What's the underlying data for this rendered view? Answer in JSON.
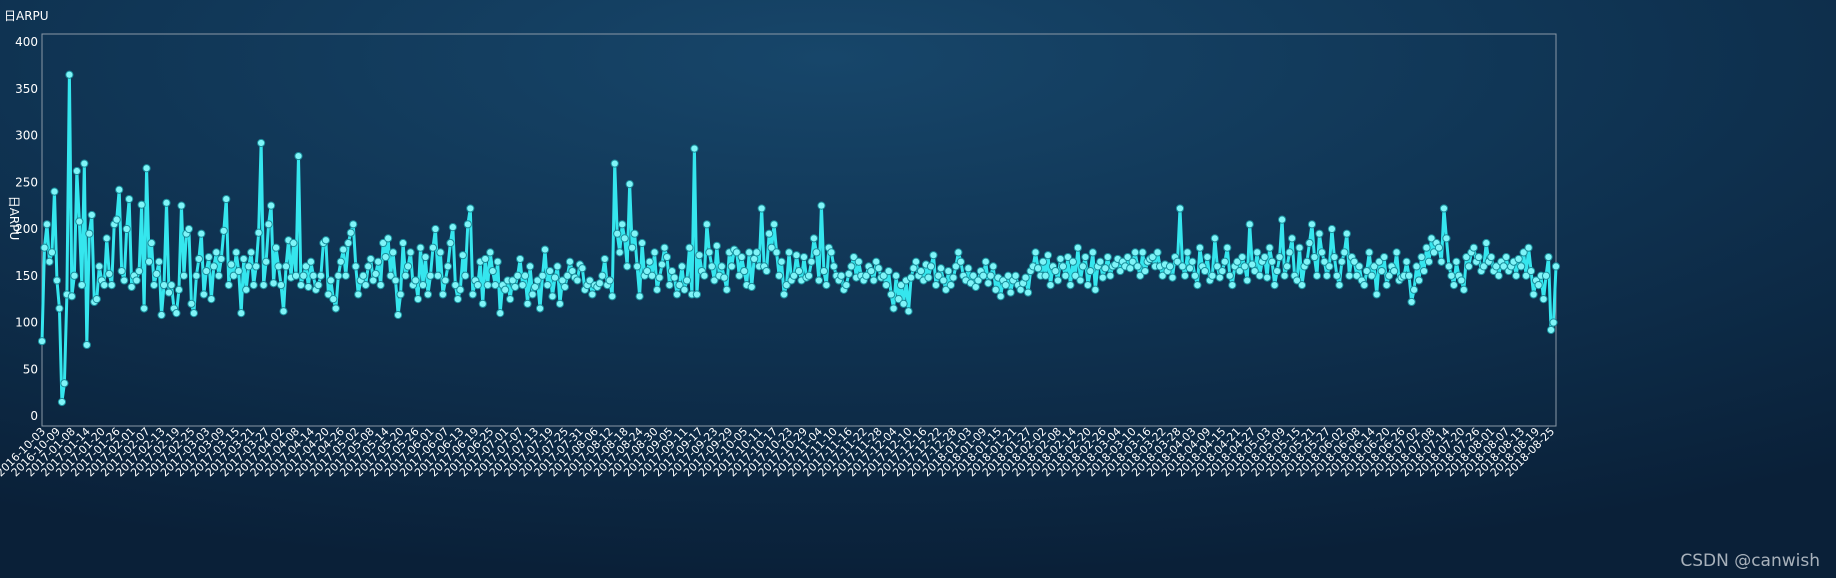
{
  "chart_data": {
    "type": "line",
    "title": "日ARPU",
    "y_label": "日ARPU",
    "watermark": "CSDN @canwish",
    "color": "#35e6ee",
    "ylim": [
      0,
      400
    ],
    "yticks": [
      0,
      50,
      100,
      150,
      200,
      250,
      300,
      350,
      400
    ],
    "grid": false,
    "categories": [
      "2016-10-03",
      null,
      null,
      null,
      null,
      null,
      "2016-10-09",
      null,
      null,
      null,
      null,
      null,
      "2017-01-08",
      null,
      null,
      null,
      null,
      null,
      "2017-01-14",
      null,
      null,
      null,
      null,
      null,
      "2017-01-20",
      null,
      null,
      null,
      null,
      null,
      "2017-01-26",
      null,
      null,
      null,
      null,
      null,
      "2017-02-01",
      null,
      null,
      null,
      null,
      null,
      "2017-02-07",
      null,
      null,
      null,
      null,
      null,
      "2017-02-13",
      null,
      null,
      null,
      null,
      null,
      "2017-02-19",
      null,
      null,
      null,
      null,
      null,
      "2017-02-25",
      null,
      null,
      null,
      null,
      null,
      "2017-03-03",
      null,
      null,
      null,
      null,
      null,
      "2017-03-09",
      null,
      null,
      null,
      null,
      null,
      "2017-03-15",
      null,
      null,
      null,
      null,
      null,
      "2017-03-21",
      null,
      null,
      null,
      null,
      null,
      "2017-03-27",
      null,
      null,
      null,
      null,
      null,
      "2017-04-02",
      null,
      null,
      null,
      null,
      null,
      "2017-04-08",
      null,
      null,
      null,
      null,
      null,
      "2017-04-14",
      null,
      null,
      null,
      null,
      null,
      "2017-04-20",
      null,
      null,
      null,
      null,
      null,
      "2017-04-26",
      null,
      null,
      null,
      null,
      null,
      "2017-05-02",
      null,
      null,
      null,
      null,
      null,
      "2017-05-08",
      null,
      null,
      null,
      null,
      null,
      "2017-05-14",
      null,
      null,
      null,
      null,
      null,
      "2017-05-20",
      null,
      null,
      null,
      null,
      null,
      "2017-05-26",
      null,
      null,
      null,
      null,
      null,
      "2017-06-01",
      null,
      null,
      null,
      null,
      null,
      "2017-06-07",
      null,
      null,
      null,
      null,
      null,
      "2017-06-13",
      null,
      null,
      null,
      null,
      null,
      "2017-06-19",
      null,
      null,
      null,
      null,
      null,
      "2017-06-25",
      null,
      null,
      null,
      null,
      null,
      "2017-07-01",
      null,
      null,
      null,
      null,
      null,
      "2017-07-07",
      null,
      null,
      null,
      null,
      null,
      "2017-07-13",
      null,
      null,
      null,
      null,
      null,
      "2017-07-19",
      null,
      null,
      null,
      null,
      null,
      "2017-07-25",
      null,
      null,
      null,
      null,
      null,
      "2017-07-31",
      null,
      null,
      null,
      null,
      null,
      "2017-08-06",
      null,
      null,
      null,
      null,
      null,
      "2017-08-12",
      null,
      null,
      null,
      null,
      null,
      "2017-08-18",
      null,
      null,
      null,
      null,
      null,
      "2017-08-24",
      null,
      null,
      null,
      null,
      null,
      "2017-08-30",
      null,
      null,
      null,
      null,
      null,
      "2017-09-05",
      null,
      null,
      null,
      null,
      null,
      "2017-09-11",
      null,
      null,
      null,
      null,
      null,
      "2017-09-17",
      null,
      null,
      null,
      null,
      null,
      "2017-09-23",
      null,
      null,
      null,
      null,
      null,
      "2017-09-29",
      null,
      null,
      null,
      null,
      null,
      "2017-10-05",
      null,
      null,
      null,
      null,
      null,
      "2017-10-11",
      null,
      null,
      null,
      null,
      null,
      "2017-10-17",
      null,
      null,
      null,
      null,
      null,
      "2017-10-23",
      null,
      null,
      null,
      null,
      null,
      "2017-10-29",
      null,
      null,
      null,
      null,
      null,
      "2017-11-04",
      null,
      null,
      null,
      null,
      null,
      "2017-11-10",
      null,
      null,
      null,
      null,
      null,
      "2017-11-16",
      null,
      null,
      null,
      null,
      null,
      "2017-11-22",
      null,
      null,
      null,
      null,
      null,
      "2017-11-28",
      null,
      null,
      null,
      null,
      null,
      "2017-12-04",
      null,
      null,
      null,
      null,
      null,
      "2017-12-10",
      null,
      null,
      null,
      null,
      null,
      "2017-12-16",
      null,
      null,
      null,
      null,
      null,
      "2017-12-22",
      null,
      null,
      null,
      null,
      null,
      "2017-12-28",
      null,
      null,
      null,
      null,
      null,
      "2018-01-03",
      null,
      null,
      null,
      null,
      null,
      "2018-01-09",
      null,
      null,
      null,
      null,
      null,
      "2018-01-15",
      null,
      null,
      null,
      null,
      null,
      "2018-01-21",
      null,
      null,
      null,
      null,
      null,
      "2018-01-27",
      null,
      null,
      null,
      null,
      null,
      "2018-02-02",
      null,
      null,
      null,
      null,
      null,
      "2018-02-08",
      null,
      null,
      null,
      null,
      null,
      "2018-02-14",
      null,
      null,
      null,
      null,
      null,
      "2018-02-20",
      null,
      null,
      null,
      null,
      null,
      "2018-02-26",
      null,
      null,
      null,
      null,
      null,
      "2018-03-04",
      null,
      null,
      null,
      null,
      null,
      "2018-03-10",
      null,
      null,
      null,
      null,
      null,
      "2018-03-16",
      null,
      null,
      null,
      null,
      null,
      "2018-03-22",
      null,
      null,
      null,
      null,
      null,
      "2018-03-28",
      null,
      null,
      null,
      null,
      null,
      "2018-04-03",
      null,
      null,
      null,
      null,
      null,
      "2018-04-09",
      null,
      null,
      null,
      null,
      null,
      "2018-04-15",
      null,
      null,
      null,
      null,
      null,
      "2018-04-21",
      null,
      null,
      null,
      null,
      null,
      "2018-04-27",
      null,
      null,
      null,
      null,
      null,
      "2018-05-03",
      null,
      null,
      null,
      null,
      null,
      "2018-05-09",
      null,
      null,
      null,
      null,
      null,
      "2018-05-15",
      null,
      null,
      null,
      null,
      null,
      "2018-05-21",
      null,
      null,
      null,
      null,
      null,
      "2018-05-27",
      null,
      null,
      null,
      null,
      null,
      "2018-06-02",
      null,
      null,
      null,
      null,
      null,
      "2018-06-08",
      null,
      null,
      null,
      null,
      null,
      "2018-06-14",
      null,
      null,
      null,
      null,
      null,
      "2018-06-20",
      null,
      null,
      null,
      null,
      null,
      "2018-06-26",
      null,
      null,
      null,
      null,
      null,
      "2018-07-02",
      null,
      null,
      null,
      null,
      null,
      "2018-07-08",
      null,
      null,
      null,
      null,
      null,
      "2018-07-14",
      null,
      null,
      null,
      null,
      null,
      "2018-07-20",
      null,
      null,
      null,
      null,
      null,
      "2018-07-26",
      null,
      null,
      null,
      null,
      null,
      "2018-08-01",
      null,
      null,
      null,
      null,
      null,
      "2018-08-07",
      null,
      null,
      null,
      null,
      null,
      "2018-08-13",
      null,
      null,
      null,
      null,
      null,
      "2018-08-19",
      null,
      null,
      null,
      null,
      null,
      "2018-08-25",
      null,
      null
    ],
    "values": [
      80,
      180,
      205,
      165,
      175,
      240,
      145,
      115,
      15,
      35,
      130,
      365,
      128,
      150,
      262,
      208,
      140,
      270,
      76,
      195,
      215,
      122,
      125,
      160,
      145,
      140,
      190,
      152,
      140,
      205,
      210,
      242,
      155,
      145,
      200,
      232,
      138,
      150,
      145,
      155,
      226,
      115,
      265,
      165,
      185,
      140,
      152,
      165,
      108,
      140,
      228,
      132,
      140,
      115,
      110,
      135,
      225,
      150,
      195,
      200,
      120,
      110,
      150,
      168,
      195,
      130,
      155,
      170,
      125,
      160,
      175,
      150,
      168,
      198,
      232,
      140,
      162,
      150,
      175,
      155,
      110,
      168,
      135,
      160,
      175,
      140,
      160,
      196,
      292,
      140,
      165,
      205,
      225,
      142,
      180,
      160,
      140,
      112,
      160,
      188,
      148,
      185,
      150,
      278,
      140,
      150,
      160,
      138,
      165,
      150,
      135,
      140,
      150,
      185,
      188,
      130,
      145,
      125,
      115,
      150,
      165,
      178,
      150,
      185,
      196,
      205,
      160,
      130,
      145,
      150,
      140,
      160,
      168,
      145,
      152,
      165,
      140,
      185,
      170,
      190,
      150,
      175,
      145,
      108,
      130,
      185,
      150,
      160,
      175,
      140,
      145,
      125,
      180,
      140,
      170,
      130,
      150,
      180,
      200,
      150,
      175,
      130,
      145,
      160,
      185,
      202,
      140,
      125,
      135,
      172,
      150,
      205,
      222,
      130,
      145,
      140,
      165,
      120,
      168,
      140,
      175,
      155,
      140,
      165,
      110,
      140,
      135,
      145,
      125,
      145,
      138,
      150,
      168,
      140,
      150,
      120,
      160,
      130,
      138,
      145,
      115,
      150,
      178,
      140,
      155,
      128,
      148,
      160,
      120,
      145,
      138,
      150,
      165,
      155,
      148,
      145,
      162,
      158,
      135,
      140,
      145,
      130,
      140,
      138,
      142,
      150,
      168,
      140,
      145,
      128,
      270,
      195,
      175,
      205,
      190,
      160,
      248,
      180,
      195,
      160,
      128,
      185,
      150,
      155,
      165,
      150,
      175,
      135,
      148,
      162,
      180,
      170,
      140,
      155,
      148,
      130,
      140,
      160,
      135,
      145,
      180,
      130,
      286,
      130,
      172,
      155,
      150,
      205,
      175,
      160,
      145,
      182,
      150,
      160,
      148,
      135,
      175,
      160,
      178,
      175,
      150,
      170,
      155,
      140,
      175,
      138,
      168,
      175,
      160,
      222,
      160,
      155,
      195,
      180,
      205,
      175,
      150,
      165,
      130,
      140,
      175,
      145,
      150,
      172,
      155,
      145,
      170,
      148,
      150,
      165,
      190,
      175,
      145,
      225,
      155,
      140,
      180,
      175,
      160,
      150,
      145,
      150,
      135,
      140,
      152,
      160,
      170,
      148,
      165,
      150,
      145,
      150,
      160,
      155,
      145,
      165,
      158,
      148,
      150,
      140,
      155,
      130,
      115,
      150,
      125,
      140,
      120,
      145,
      112,
      148,
      158,
      165,
      150,
      155,
      145,
      162,
      148,
      160,
      172,
      140,
      150,
      158,
      145,
      135,
      155,
      140,
      148,
      160,
      175,
      165,
      150,
      145,
      158,
      142,
      150,
      138,
      145,
      155,
      150,
      165,
      142,
      150,
      160,
      135,
      148,
      128,
      145,
      140,
      150,
      132,
      145,
      150,
      140,
      135,
      142,
      148,
      132,
      155,
      160,
      175,
      158,
      150,
      165,
      150,
      172,
      140,
      160,
      155,
      145,
      168,
      160,
      150,
      170,
      140,
      165,
      150,
      180,
      145,
      160,
      170,
      140,
      155,
      175,
      135,
      160,
      165,
      148,
      158,
      170,
      150,
      160,
      162,
      168,
      155,
      165,
      160,
      170,
      158,
      165,
      175,
      160,
      150,
      175,
      155,
      165,
      168,
      170,
      160,
      175,
      160,
      150,
      162,
      155,
      160,
      148,
      170,
      165,
      222,
      160,
      150,
      175,
      158,
      165,
      150,
      140,
      180,
      160,
      155,
      170,
      145,
      150,
      190,
      160,
      148,
      155,
      165,
      180,
      150,
      140,
      160,
      165,
      155,
      170,
      160,
      145,
      205,
      162,
      155,
      175,
      150,
      165,
      170,
      148,
      180,
      165,
      140,
      155,
      170,
      210,
      150,
      160,
      175,
      190,
      150,
      145,
      180,
      140,
      160,
      165,
      185,
      205,
      170,
      150,
      195,
      175,
      165,
      150,
      160,
      200,
      170,
      150,
      140,
      165,
      175,
      195,
      150,
      170,
      165,
      150,
      160,
      145,
      140,
      155,
      175,
      150,
      160,
      130,
      165,
      155,
      170,
      140,
      150,
      160,
      155,
      175,
      145,
      148,
      150,
      165,
      150,
      122,
      135,
      160,
      145,
      170,
      155,
      180,
      165,
      190,
      175,
      185,
      180,
      165,
      222,
      190,
      160,
      150,
      140,
      165,
      150,
      145,
      135,
      170,
      160,
      175,
      180,
      165,
      170,
      155,
      160,
      185,
      165,
      170,
      155,
      160,
      150,
      165,
      160,
      170,
      155,
      160,
      165,
      150,
      168,
      160,
      175,
      150,
      180,
      155,
      130,
      145,
      140,
      150,
      125,
      150,
      170,
      92,
      100,
      160
    ]
  }
}
